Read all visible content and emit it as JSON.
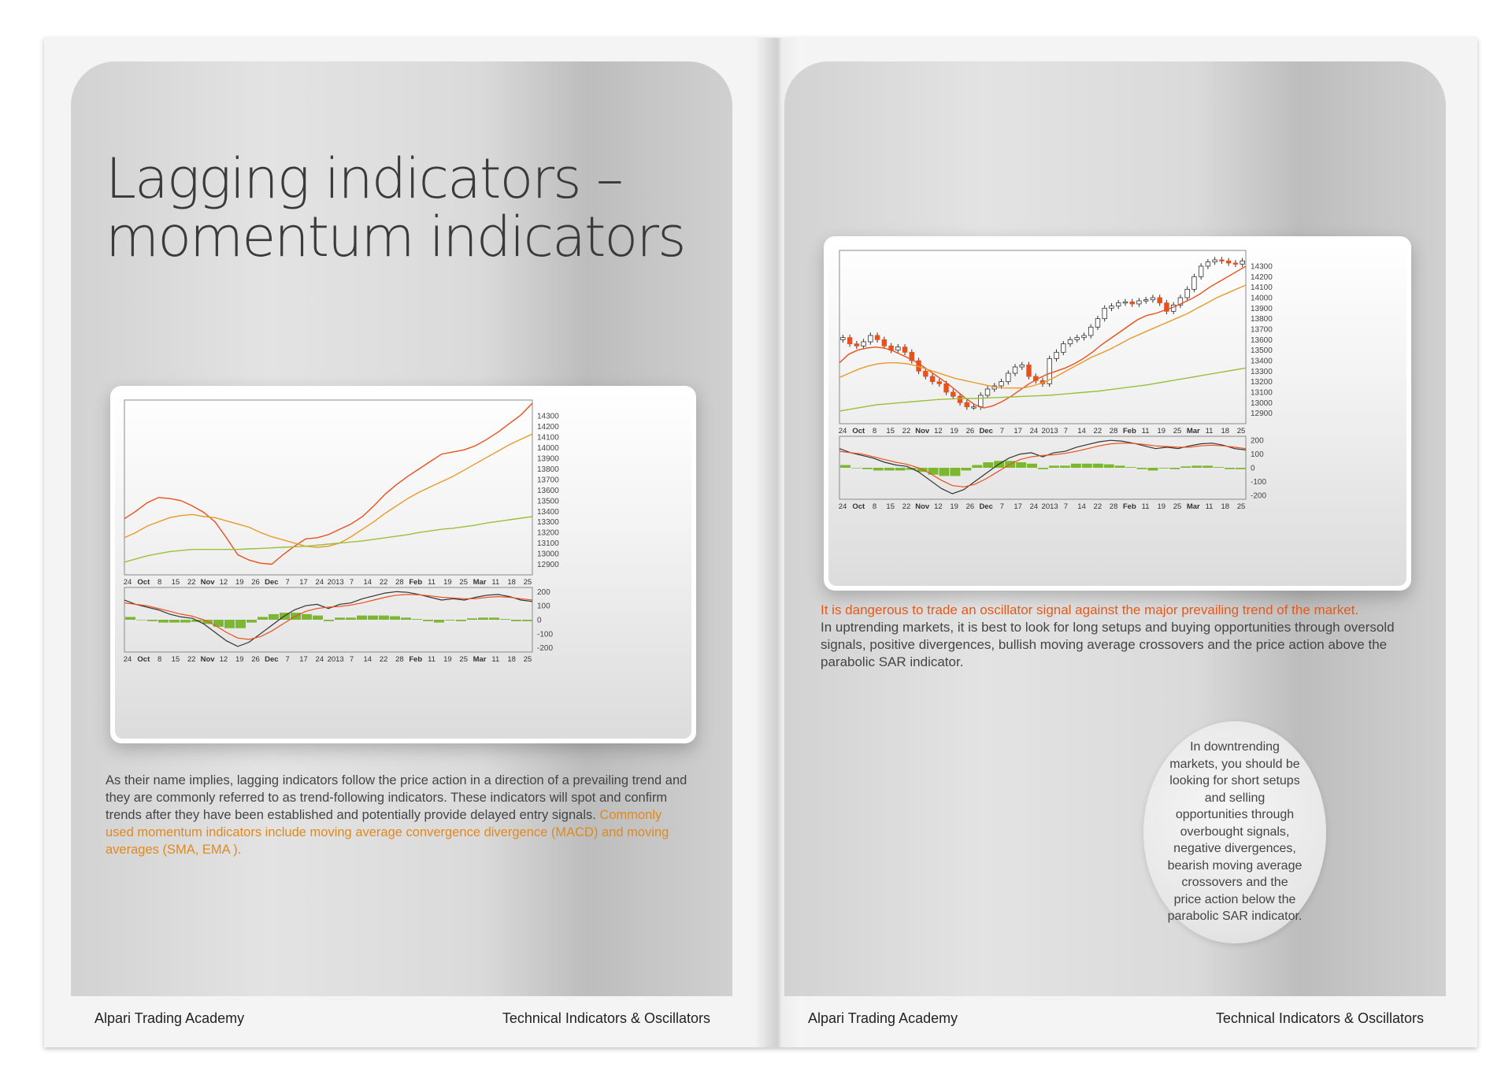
{
  "left_page": {
    "title_line1": "Lagging indicators –",
    "title_line2": "momentum indicators",
    "body": "As their name implies, lagging indicators follow the price action in a direction of a prevailing trend and they are commonly referred to as trend-following indicators. These indicators will spot and confirm trends after they have been established and potentially provide delayed entry signals.",
    "highlight": "Commonly used momentum indicators include moving average convergence divergence (MACD) and moving averages (SMA, EMA ).",
    "footer_left": "Alpari Trading Academy",
    "footer_right": "Technical Indicators & Oscillators"
  },
  "right_page": {
    "warning": "It is dangerous to trade an oscillator signal against the major prevailing trend of the market.",
    "body": "In uptrending markets, it is best to look for long setups and buying opportunities through oversold signals, positive divergences, bullish moving average crossovers and the price action above the parabolic SAR indicator.",
    "circle_text": "In downtrending markets, you should be looking for short setups and selling opportunities through overbought signals, negative divergences, bearish moving average crossovers and the price action below the parabolic SAR indicator.",
    "footer_left": "Alpari Trading Academy",
    "footer_right": "Technical Indicators & Oscillators"
  },
  "colors": {
    "highlight_orange": "#e0891f",
    "warning_orange": "#e35a1c",
    "ma_fast": "#e8501c",
    "ma_mid": "#e89a2a",
    "ma_slow": "#9cbf3a",
    "macd_hist": "#7cb82f",
    "candle_down": "#e8501c"
  },
  "chart_data": [
    {
      "type": "line",
      "ylim": [
        12800,
        14450
      ],
      "y_ticks": [
        14300,
        14200,
        14100,
        14000,
        13900,
        13800,
        13700,
        13600,
        13500,
        13400,
        13300,
        13200,
        13100,
        13000,
        12900
      ],
      "x_tick_labels": [
        "24",
        "Oct",
        "8",
        "15",
        "22",
        "Nov",
        "12",
        "19",
        "26",
        "Dec",
        "7",
        "17",
        "24",
        "2013",
        "7",
        "14",
        "22",
        "28",
        "Feb",
        "11",
        "19",
        "25",
        "Mar",
        "11",
        "18",
        "25"
      ],
      "series": [
        {
          "values": [
            13330,
            13400,
            13480,
            13530,
            13520,
            13500,
            13450,
            13390,
            13300,
            13150,
            12990,
            12940,
            12910,
            12900,
            12990,
            13070,
            13140,
            13150,
            13180,
            13230,
            13280,
            13350,
            13450,
            13560,
            13650,
            13730,
            13800,
            13870,
            13940,
            13960,
            13980,
            14020,
            14080,
            14150,
            14230,
            14310,
            14420
          ]
        },
        {
          "values": [
            13150,
            13200,
            13260,
            13300,
            13340,
            13360,
            13370,
            13350,
            13340,
            13310,
            13280,
            13250,
            13200,
            13160,
            13130,
            13100,
            13070,
            13060,
            13070,
            13100,
            13160,
            13230,
            13300,
            13380,
            13450,
            13520,
            13580,
            13630,
            13680,
            13730,
            13790,
            13850,
            13910,
            13970,
            14030,
            14080,
            14130
          ]
        },
        {
          "values": [
            12920,
            12950,
            12980,
            13000,
            13020,
            13030,
            13040,
            13040,
            13040,
            13040,
            13040,
            13045,
            13050,
            13055,
            13060,
            13065,
            13070,
            13080,
            13090,
            13100,
            13110,
            13120,
            13135,
            13150,
            13165,
            13180,
            13200,
            13215,
            13230,
            13240,
            13255,
            13270,
            13290,
            13305,
            13320,
            13335,
            13350
          ]
        }
      ]
    },
    {
      "type": "line",
      "ylim": [
        -230,
        230
      ],
      "y_ticks": [
        200,
        100,
        0,
        -100,
        -200
      ],
      "x_tick_labels": [
        "24",
        "Oct",
        "8",
        "15",
        "22",
        "Nov",
        "12",
        "19",
        "26",
        "Dec",
        "7",
        "17",
        "24",
        "2013",
        "7",
        "14",
        "22",
        "28",
        "Feb",
        "11",
        "19",
        "25",
        "Mar",
        "11",
        "18",
        "25"
      ],
      "series": [
        {
          "values": [
            140,
            110,
            90,
            70,
            40,
            20,
            10,
            -30,
            -90,
            -150,
            -190,
            -160,
            -100,
            -40,
            20,
            70,
            100,
            110,
            80,
            110,
            120,
            150,
            170,
            190,
            200,
            195,
            180,
            160,
            140,
            150,
            140,
            160,
            175,
            180,
            165,
            140,
            130
          ]
        },
        {
          "values": [
            120,
            110,
            100,
            80,
            60,
            40,
            25,
            0,
            -40,
            -90,
            -130,
            -140,
            -120,
            -80,
            -30,
            20,
            60,
            80,
            90,
            95,
            105,
            120,
            140,
            160,
            175,
            180,
            178,
            170,
            160,
            155,
            150,
            150,
            160,
            165,
            160,
            150,
            140
          ]
        },
        {
          "values": [
            20,
            0,
            -10,
            -20,
            -20,
            -20,
            -15,
            -30,
            -50,
            -60,
            -60,
            -20,
            20,
            40,
            50,
            50,
            40,
            30,
            -10,
            15,
            15,
            30,
            30,
            30,
            25,
            15,
            5,
            -10,
            -20,
            -5,
            -10,
            10,
            15,
            15,
            5,
            -10,
            -10
          ]
        }
      ]
    },
    {
      "type": "bar",
      "ylim": [
        12800,
        14450
      ],
      "y_ticks": [
        14300,
        14200,
        14100,
        14000,
        13900,
        13800,
        13700,
        13600,
        13500,
        13400,
        13300,
        13200,
        13100,
        13000,
        12900
      ],
      "x_tick_labels": [
        "24",
        "Oct",
        "8",
        "15",
        "22",
        "Nov",
        "12",
        "19",
        "26",
        "Dec",
        "7",
        "17",
        "24",
        "2013",
        "7",
        "14",
        "22",
        "28",
        "Feb",
        "11",
        "19",
        "25",
        "Mar",
        "11",
        "18",
        "25"
      ],
      "price": [
        13620,
        13560,
        13540,
        13580,
        13640,
        13600,
        13540,
        13500,
        13530,
        13480,
        13400,
        13300,
        13250,
        13200,
        13180,
        13100,
        13060,
        13000,
        12960,
        12960,
        13070,
        13130,
        13160,
        13200,
        13280,
        13340,
        13360,
        13250,
        13210,
        13180,
        13420,
        13480,
        13560,
        13600,
        13620,
        13640,
        13720,
        13800,
        13900,
        13920,
        13950,
        13960,
        13940,
        13970,
        13980,
        14000,
        13950,
        13870,
        13930,
        14000,
        14080,
        14200,
        14300,
        14340,
        14360,
        14350,
        14330,
        14320,
        14350
      ],
      "series": [
        {
          "values": [
            13380,
            13460,
            13500,
            13520,
            13530,
            13520,
            13490,
            13450,
            13410,
            13360,
            13300,
            13240,
            13180,
            13110,
            13040,
            12980,
            12950,
            12970,
            13010,
            13060,
            13120,
            13180,
            13230,
            13270,
            13300,
            13330,
            13370,
            13420,
            13480,
            13550,
            13610,
            13670,
            13730,
            13790,
            13830,
            13850,
            13880,
            13910,
            13950,
            13990,
            14040,
            14100,
            14150,
            14200,
            14250,
            14300
          ]
        },
        {
          "values": [
            13240,
            13280,
            13320,
            13350,
            13370,
            13380,
            13380,
            13370,
            13350,
            13320,
            13290,
            13260,
            13230,
            13210,
            13190,
            13170,
            13150,
            13140,
            13140,
            13140,
            13160,
            13190,
            13230,
            13280,
            13330,
            13380,
            13430,
            13470,
            13510,
            13560,
            13610,
            13650,
            13690,
            13730,
            13770,
            13810,
            13850,
            13900,
            13950,
            14000,
            14040,
            14080,
            14120
          ]
        },
        {
          "values": [
            12920,
            12940,
            12960,
            12980,
            12990,
            13000,
            13010,
            13020,
            13030,
            13035,
            13040,
            13040,
            13045,
            13050,
            13055,
            13060,
            13065,
            13070,
            13080,
            13090,
            13100,
            13110,
            13125,
            13140,
            13155,
            13170,
            13190,
            13210,
            13230,
            13250,
            13270,
            13290,
            13310,
            13330
          ]
        }
      ]
    },
    {
      "type": "line",
      "ylim": [
        -230,
        230
      ],
      "y_ticks": [
        200,
        100,
        0,
        -100,
        -200
      ],
      "x_tick_labels": [
        "24",
        "Oct",
        "8",
        "15",
        "22",
        "Nov",
        "12",
        "19",
        "26",
        "Dec",
        "7",
        "17",
        "24",
        "2013",
        "7",
        "14",
        "22",
        "28",
        "Feb",
        "11",
        "19",
        "25",
        "Mar",
        "11",
        "18",
        "25"
      ],
      "series": [
        {
          "values": [
            140,
            110,
            90,
            70,
            40,
            20,
            10,
            -30,
            -90,
            -150,
            -190,
            -160,
            -100,
            -40,
            20,
            70,
            100,
            110,
            80,
            110,
            120,
            150,
            170,
            190,
            200,
            195,
            180,
            160,
            140,
            150,
            140,
            160,
            175,
            180,
            165,
            140,
            130
          ]
        },
        {
          "values": [
            120,
            110,
            100,
            80,
            60,
            40,
            25,
            0,
            -40,
            -90,
            -130,
            -140,
            -120,
            -80,
            -30,
            20,
            60,
            80,
            90,
            95,
            105,
            120,
            140,
            160,
            175,
            180,
            178,
            170,
            160,
            155,
            150,
            150,
            160,
            165,
            160,
            150,
            140
          ]
        },
        {
          "values": [
            20,
            0,
            -10,
            -20,
            -20,
            -20,
            -15,
            -30,
            -50,
            -60,
            -60,
            -20,
            20,
            40,
            50,
            50,
            40,
            30,
            -10,
            15,
            15,
            30,
            30,
            30,
            25,
            15,
            5,
            -10,
            -20,
            -5,
            -10,
            10,
            15,
            15,
            5,
            -10,
            -10
          ]
        }
      ]
    }
  ]
}
